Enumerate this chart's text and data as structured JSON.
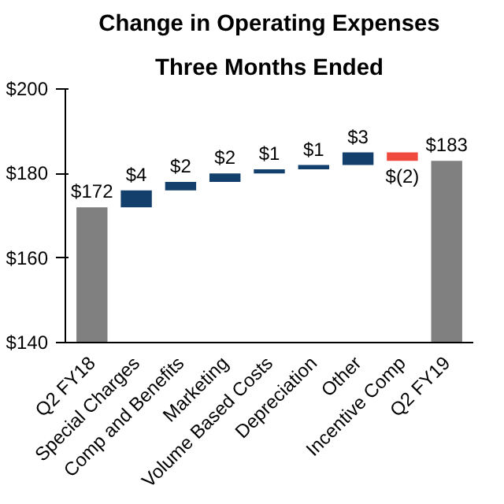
{
  "chart_data": {
    "type": "bar",
    "title": "Change in Operating Expenses",
    "subtitle": "Three Months Ended",
    "categories": [
      "Q2 FY18",
      "Special Charges",
      "Comp and Benefits",
      "Marketing",
      "Volume Based Costs",
      "Depreciation",
      "Other",
      "Incentive Comp",
      "Q2 FY19"
    ],
    "values": [
      172,
      4,
      2,
      2,
      1,
      1,
      3,
      -2,
      183
    ],
    "base": [
      null,
      172,
      176,
      178,
      180,
      181,
      182,
      185,
      null
    ],
    "colors": [
      "#808080",
      "#123f6b",
      "#123f6b",
      "#123f6b",
      "#123f6b",
      "#123f6b",
      "#123f6b",
      "#f0493e",
      "#808080"
    ],
    "value_labels": [
      "$172",
      "$4",
      "$2",
      "$2",
      "$1",
      "$1",
      "$3",
      "$(2)",
      "$183"
    ],
    "ylim": [
      140,
      200
    ],
    "yticks": [
      {
        "value": 140,
        "label": "$140"
      },
      {
        "value": 160,
        "label": "$160"
      },
      {
        "value": 180,
        "label": "$180"
      },
      {
        "value": 200,
        "label": "$200"
      }
    ],
    "grid": false
  }
}
